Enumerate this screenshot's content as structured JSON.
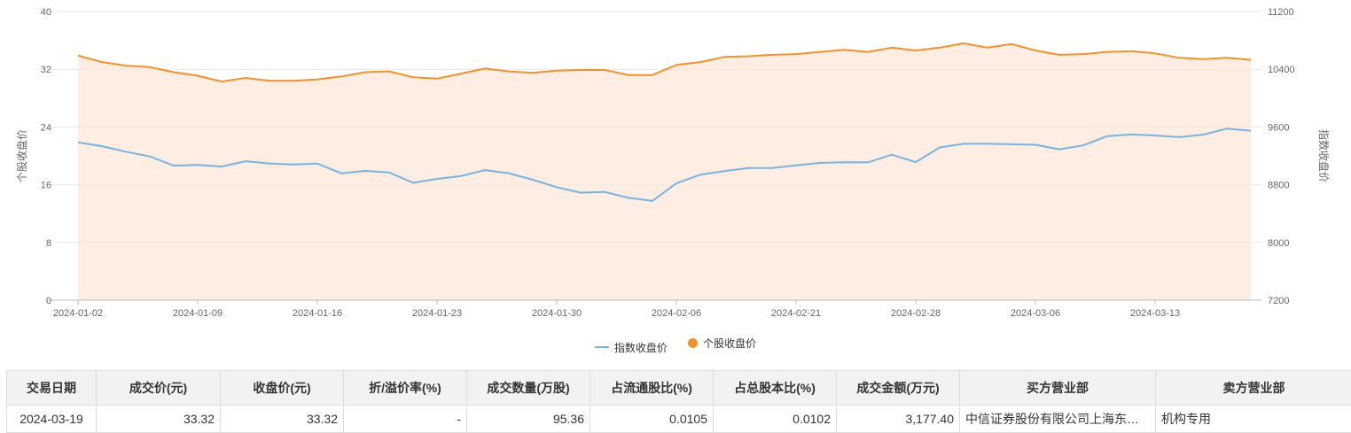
{
  "chart_data": {
    "type": "line",
    "x": [
      "2024-01-02",
      "2024-01-03",
      "2024-01-04",
      "2024-01-05",
      "2024-01-08",
      "2024-01-09",
      "2024-01-10",
      "2024-01-11",
      "2024-01-12",
      "2024-01-15",
      "2024-01-16",
      "2024-01-17",
      "2024-01-18",
      "2024-01-19",
      "2024-01-22",
      "2024-01-23",
      "2024-01-24",
      "2024-01-25",
      "2024-01-26",
      "2024-01-29",
      "2024-01-30",
      "2024-01-31",
      "2024-02-01",
      "2024-02-02",
      "2024-02-05",
      "2024-02-06",
      "2024-02-07",
      "2024-02-08",
      "2024-02-19",
      "2024-02-20",
      "2024-02-21",
      "2024-02-22",
      "2024-02-23",
      "2024-02-26",
      "2024-02-27",
      "2024-02-28",
      "2024-02-29",
      "2024-03-01",
      "2024-03-04",
      "2024-03-05",
      "2024-03-06",
      "2024-03-07",
      "2024-03-08",
      "2024-03-11",
      "2024-03-12",
      "2024-03-13",
      "2024-03-14",
      "2024-03-15",
      "2024-03-18",
      "2024-03-19"
    ],
    "x_tick_labels": [
      "2024-01-02",
      "2024-01-09",
      "2024-01-16",
      "2024-01-23",
      "2024-01-30",
      "2024-02-06",
      "2024-02-21",
      "2024-02-28",
      "2024-03-06",
      "2024-03-13"
    ],
    "series": [
      {
        "name": "指数收盘价",
        "axis": "right",
        "color": "#7ab3e0",
        "values": [
          9386,
          9334,
          9258,
          9192,
          9065,
          9075,
          9052,
          9125,
          9095,
          9081,
          9092,
          8958,
          8992,
          8970,
          8826,
          8881,
          8920,
          9002,
          8959,
          8869,
          8766,
          8690,
          8699,
          8618,
          8575,
          8820,
          8939,
          8988,
          9031,
          9032,
          9068,
          9102,
          9111,
          9109,
          9216,
          9113,
          9317,
          9367,
          9367,
          9361,
          9353,
          9291,
          9345,
          9474,
          9496,
          9482,
          9459,
          9493,
          9577,
          9549
        ]
      },
      {
        "name": "个股收盘价",
        "axis": "left",
        "color": "#f0922e",
        "values": [
          33.9,
          33.0,
          32.5,
          32.3,
          31.6,
          31.1,
          30.3,
          30.8,
          30.4,
          30.4,
          30.6,
          31.0,
          31.6,
          31.7,
          30.9,
          30.7,
          31.4,
          32.1,
          31.7,
          31.5,
          31.8,
          31.9,
          31.9,
          31.2,
          31.2,
          32.6,
          33.0,
          33.7,
          33.8,
          34.0,
          34.1,
          34.4,
          34.7,
          34.4,
          35.0,
          34.6,
          35.0,
          35.6,
          35.0,
          35.5,
          34.6,
          34.0,
          34.1,
          34.4,
          34.5,
          34.2,
          33.6,
          33.4,
          33.6,
          33.3
        ]
      }
    ],
    "y_left": {
      "label": "个股收盘价",
      "ticks": [
        "0",
        "8",
        "16",
        "24",
        "32",
        "40"
      ],
      "lim": [
        0,
        40
      ]
    },
    "y_right": {
      "label": "指数收盘价",
      "ticks": [
        "7200",
        "8000",
        "8800",
        "9600",
        "10400",
        "11200"
      ],
      "lim": [
        7200,
        11200
      ]
    },
    "grid": true,
    "legend_position": "bottom-center"
  },
  "legend": {
    "index": "指数收盘价",
    "stock": "个股收盘价"
  },
  "table": {
    "headers": [
      "交易日期",
      "成交价(元)",
      "收盘价(元)",
      "折/溢价率(%)",
      "成交数量(万股)",
      "占流通股比(%)",
      "占总股本比(%)",
      "成交金额(万元)",
      "买方营业部",
      "卖方营业部"
    ],
    "rows": [
      [
        "2024-03-19",
        "33.32",
        "33.32",
        "-",
        "95.36",
        "0.0105",
        "0.0102",
        "3,177.40",
        "中信证券股份有限公司上海东方路证券营业部",
        "机构专用"
      ]
    ]
  }
}
